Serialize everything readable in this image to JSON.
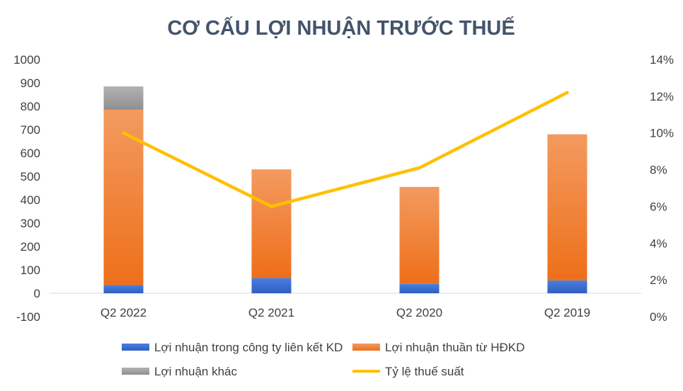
{
  "chart_data": {
    "type": "bar",
    "title": "CƠ CẤU LỢI NHUẬN TRƯỚC THUẾ",
    "categories": [
      "Q2 2022",
      "Q2 2021",
      "Q2 2020",
      "Q2 2019"
    ],
    "stacked": true,
    "series": [
      {
        "name": "Lợi nhuận trong công ty liên kết KD",
        "type": "bar",
        "axis": "left",
        "color": "#3A6FD0",
        "values": [
          35,
          65,
          40,
          55
        ]
      },
      {
        "name": "Lợi nhuận thuần từ HĐKD",
        "type": "bar",
        "axis": "left",
        "color": "#F07D2E",
        "values": [
          750,
          465,
          415,
          625
        ]
      },
      {
        "name": "Lợi nhuận khác",
        "type": "bar",
        "axis": "left",
        "color": "#A5A5A5",
        "values": [
          100,
          0,
          0,
          0
        ]
      },
      {
        "name": "Tỷ lệ thuế suất",
        "type": "line",
        "axis": "right",
        "color": "#FFC000",
        "values": [
          10.0,
          6.0,
          8.1,
          12.2
        ]
      }
    ],
    "y_left": {
      "min": -100,
      "max": 1000,
      "step": 100,
      "ticks": [
        "-100",
        "0",
        "100",
        "200",
        "300",
        "400",
        "500",
        "600",
        "700",
        "800",
        "900",
        "1000"
      ]
    },
    "y_right": {
      "min": 0,
      "max": 14,
      "step": 2,
      "ticks": [
        "0%",
        "2%",
        "4%",
        "6%",
        "8%",
        "10%",
        "12%",
        "14%"
      ]
    },
    "grid": false,
    "legend": "bottom"
  }
}
